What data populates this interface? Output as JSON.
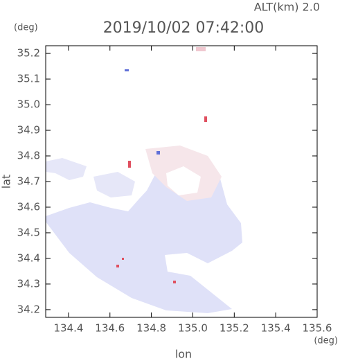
{
  "chart_data": {
    "type": "radar-map",
    "title": "2019/10/02 07:42:00",
    "subtitle": "ALT(km) 2.0",
    "xlabel": "lon",
    "xunit": "(deg)",
    "ylabel": "lat",
    "yunit": "(deg)",
    "xlim": [
      134.29,
      135.6
    ],
    "xticks": [
      134.4,
      134.6,
      134.8,
      {
        "value": 135.0,
        "label": "135.0"
      },
      135.2,
      135.4,
      135.6
    ],
    "ylim": [
      34.17,
      35.23
    ],
    "yticks": [
      34.2,
      34.3,
      34.4,
      34.5,
      34.6,
      34.7,
      34.8,
      34.9,
      {
        "value": 35.0,
        "label": "35.0"
      },
      35.1,
      35.2
    ]
  }
}
